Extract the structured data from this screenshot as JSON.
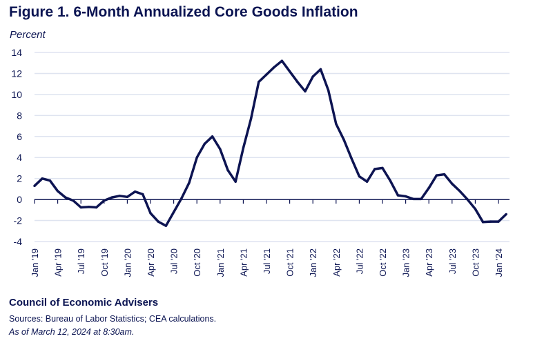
{
  "title": "Figure 1. 6-Month Annualized Core Goods Inflation",
  "footer": {
    "organization": "Council of Economic Advisers",
    "sources": "Sources: Bureau of Labor Statistics; CEA calculations.",
    "as_of": "As of March 12, 2024 at 8:30am."
  },
  "colors": {
    "line": "#0d1452",
    "grid": "#dfe4f0",
    "text": "#0b1452"
  },
  "chart_data": {
    "type": "line",
    "title": "Figure 1. 6-Month Annualized Core Goods Inflation",
    "ylabel": "Percent",
    "xlabel": "",
    "ylim": [
      -4,
      14
    ],
    "yticks": [
      14,
      12,
      10,
      8,
      6,
      4,
      2,
      0,
      -2,
      -4
    ],
    "grid": true,
    "start_month": "Jan 2019",
    "xtick_labels": [
      "Jan '19",
      "Apr '19",
      "Jul '19",
      "Oct '19",
      "Jan '20",
      "Apr '20",
      "Jul '20",
      "Oct '20",
      "Jan '21",
      "Apr '21",
      "Jul '21",
      "Oct '21",
      "Jan '22",
      "Apr '22",
      "Jul '22",
      "Oct '22",
      "Jan '23",
      "Apr '23",
      "Jul '23",
      "Oct '23",
      "Jan '24"
    ],
    "series": [
      {
        "name": "6-Month Annualized Core Goods Inflation",
        "values": [
          1.3,
          2.0,
          1.8,
          0.8,
          0.2,
          -0.1,
          -0.75,
          -0.7,
          -0.75,
          -0.1,
          0.2,
          0.35,
          0.25,
          0.75,
          0.5,
          -1.3,
          -2.1,
          -2.5,
          -1.2,
          0.1,
          1.6,
          4.0,
          5.3,
          6.0,
          4.8,
          2.8,
          1.7,
          4.9,
          7.7,
          11.2,
          11.9,
          12.6,
          13.2,
          12.2,
          11.2,
          10.3,
          11.7,
          12.4,
          10.4,
          7.2,
          5.7,
          3.9,
          2.2,
          1.7,
          2.9,
          3.0,
          1.8,
          0.4,
          0.3,
          0.05,
          0.05,
          1.1,
          2.3,
          2.4,
          1.5,
          0.8,
          0.0,
          -0.9,
          -2.15,
          -2.1,
          -2.1,
          -1.4
        ]
      }
    ]
  }
}
